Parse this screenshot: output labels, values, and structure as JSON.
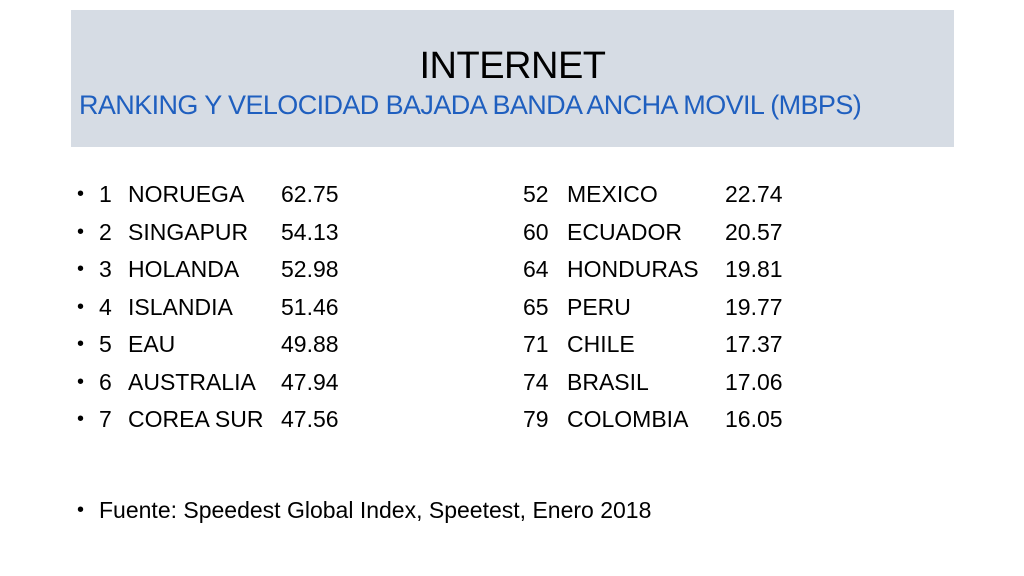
{
  "title": "INTERNET",
  "subtitle": "RANKING Y VELOCIDAD BAJADA BANDA ANCHA MOVIL (MBPS)",
  "rows": [
    {
      "left": {
        "rank": "1",
        "country": "NORUEGA",
        "speed": "62.75"
      },
      "right": {
        "rank": "52",
        "country": "MEXICO",
        "speed": "22.74"
      }
    },
    {
      "left": {
        "rank": "2",
        "country": "SINGAPUR",
        "speed": "54.13"
      },
      "right": {
        "rank": "60",
        "country": "ECUADOR",
        "speed": "20.57"
      }
    },
    {
      "left": {
        "rank": "3",
        "country": "HOLANDA",
        "speed": "52.98"
      },
      "right": {
        "rank": "64",
        "country": "HONDURAS",
        "speed": "19.81"
      }
    },
    {
      "left": {
        "rank": "4",
        "country": "ISLANDIA",
        "speed": "51.46"
      },
      "right": {
        "rank": "65",
        "country": "PERU",
        "speed": "19.77"
      }
    },
    {
      "left": {
        "rank": "5",
        "country": "EAU",
        "speed": "49.88"
      },
      "right": {
        "rank": "71",
        "country": "CHILE",
        "speed": "17.37"
      }
    },
    {
      "left": {
        "rank": "6",
        "country": "AUSTRALIA",
        "speed": "47.94"
      },
      "right": {
        "rank": "74",
        "country": "BRASIL",
        "speed": "17.06"
      }
    },
    {
      "left": {
        "rank": "7",
        "country": "COREA SUR",
        "speed": "47.56"
      },
      "right": {
        "rank": "79",
        "country": "COLOMBIA",
        "speed": "16.05"
      }
    }
  ],
  "source": "Fuente: Speedest Global Index, Speetest, Enero 2018",
  "bullet_glyph": "•",
  "colors": {
    "title_bg": "#d6dce4",
    "subtitle": "#1f5fbf"
  }
}
